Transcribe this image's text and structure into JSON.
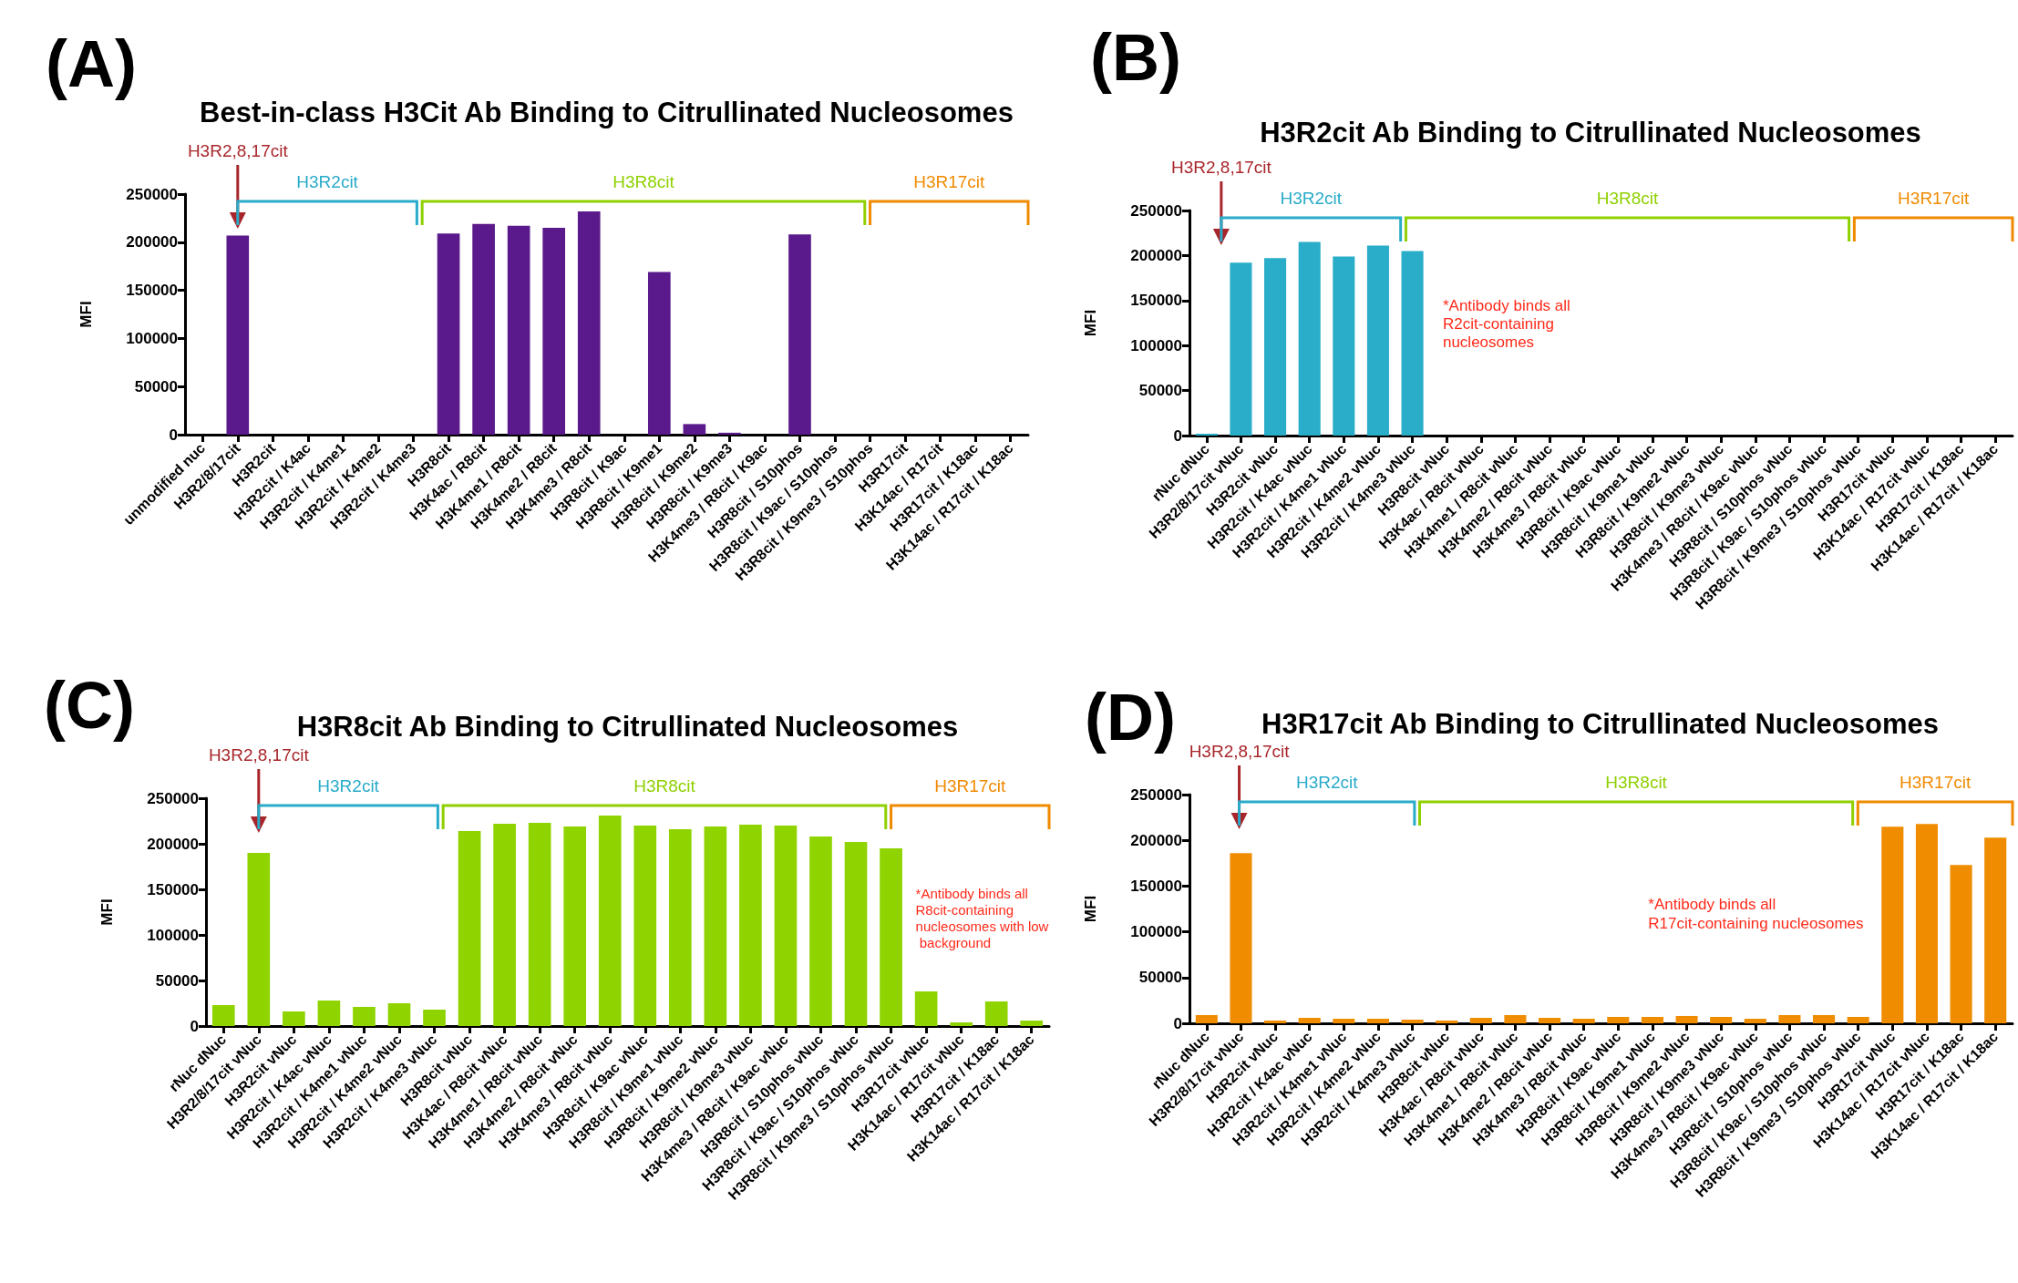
{
  "chart_data": [
    {
      "type": "bar",
      "title": "Best-in-class H3Cit Ab Binding to Citrullinated Nucleosomes",
      "ylabel": "MFI",
      "color": "#5b1a8b",
      "categories": [
        "unmodified nuc",
        "H3R2/8/17cit",
        "H3R2cit",
        "H3R2cit / K4ac",
        "H3R2cit / K4me1",
        "H3R2cit / K4me2",
        "H3R2cit / K4me3",
        "H3R8cit",
        "H3K4ac / R8cit",
        "H3K4me1 / R8cit",
        "H3K4me2 / R8cit",
        "H3K4me3 / R8cit",
        "H3R8cit / K9ac",
        "H3R8cit / K9me1",
        "H3R8cit / K9me2",
        "H3R8cit / K9me3",
        "H3K4me3 / R8cit / K9ac",
        "H3R8cit / S10phos",
        "H3R8cit / K9ac / S10phos",
        "H3R8cit / K9me3 / S10phos",
        "H3R17cit",
        "H3K14ac / R17cit",
        "H3R17cit / K18ac",
        "H3K14ac / R17cit / K18ac"
      ],
      "values": [
        0,
        207000,
        0,
        0,
        0,
        0,
        0,
        209000,
        219000,
        217000,
        215000,
        232000,
        0,
        169000,
        11000,
        2000,
        0,
        208000,
        0,
        0,
        0,
        0,
        0,
        0
      ],
      "ylim": [
        0,
        250000
      ],
      "yticks": [
        0,
        50000,
        100000,
        150000,
        200000,
        250000
      ],
      "annotations": [
        "(A)",
        "H3R2,8,17cit",
        "H3R2cit",
        "H3R8cit",
        "H3R17cit"
      ]
    },
    {
      "type": "bar",
      "title": "H3R2cit Ab Binding to Citrullinated Nucleosomes",
      "ylabel": "MFI",
      "color": "#29adc8",
      "categories": [
        "rNuc dNuc",
        "H3R2/8/17cit vNuc",
        "H3R2cit vNuc",
        "H3R2cit / K4ac vNuc",
        "H3R2cit / K4me1 vNuc",
        "H3R2cit / K4me2 vNuc",
        "H3R2cit / K4me3 vNuc",
        "H3R8cit vNuc",
        "H3K4ac / R8cit vNuc",
        "H3K4me1 / R8cit vNuc",
        "H3K4me2 / R8cit vNuc",
        "H3K4me3 / R8cit vNuc",
        "H3R8cit / K9ac vNuc",
        "H3R8cit / K9me1 vNuc",
        "H3R8cit / K9me2 vNuc",
        "H3R8cit / K9me3 vNuc",
        "H3K4me3 / R8cit / K9ac vNuc",
        "H3R8cit / S10phos vNuc",
        "H3R8cit / K9ac / S10phos vNuc",
        "H3R8cit / K9me3 / S10phos vNuc",
        "H3R17cit vNuc",
        "H3K14ac / R17cit vNuc",
        "H3R17cit / K18ac",
        "H3K14ac / R17cit / K18ac"
      ],
      "values": [
        2000,
        192000,
        197000,
        215000,
        199000,
        211000,
        205000,
        0,
        0,
        0,
        0,
        0,
        0,
        0,
        0,
        0,
        0,
        0,
        0,
        0,
        0,
        0,
        0,
        0
      ],
      "ylim": [
        0,
        250000
      ],
      "yticks": [
        0,
        50000,
        100000,
        150000,
        200000,
        250000
      ],
      "annotations": [
        "(B)",
        "H3R2,8,17cit",
        "H3R2cit",
        "H3R8cit",
        "H3R17cit",
        "*Antibody binds all R2cit-containing nucleosomes"
      ]
    },
    {
      "type": "bar",
      "title": "H3R8cit Ab Binding to Citrullinated Nucleosomes",
      "ylabel": "MFI",
      "color": "#8fd400",
      "categories": [
        "rNuc dNuc",
        "H3R2/8/17cit vNuc",
        "H3R2cit vNuc",
        "H3R2cit / K4ac vNuc",
        "H3R2cit / K4me1 vNuc",
        "H3R2cit / K4me2 vNuc",
        "H3R2cit / K4me3 vNuc",
        "H3R8cit vNuc",
        "H3K4ac / R8cit vNuc",
        "H3K4me1 / R8cit vNuc",
        "H3K4me2 / R8cit vNuc",
        "H3K4me3 / R8cit vNuc",
        "H3R8cit / K9ac vNuc",
        "H3R8cit / K9me1 vNuc",
        "H3R8cit / K9me2 vNuc",
        "H3R8cit / K9me3 vNuc",
        "H3K4me3 / R8cit / K9ac vNuc",
        "H3R8cit / S10phos vNuc",
        "H3R8cit / K9ac / S10phos vNuc",
        "H3R8cit / K9me3 / S10phos vNuc",
        "H3R17cit vNuc",
        "H3K14ac / R17cit vNuc",
        "H3R17cit / K18ac",
        "H3K14ac / R17cit / K18ac"
      ],
      "values": [
        23000,
        190000,
        16000,
        28000,
        21000,
        25000,
        18000,
        214000,
        222000,
        223000,
        219000,
        231000,
        220000,
        216000,
        219000,
        221000,
        220000,
        208000,
        202000,
        195000,
        38000,
        4000,
        27000,
        6000
      ],
      "ylim": [
        0,
        250000
      ],
      "yticks": [
        0,
        50000,
        100000,
        150000,
        200000,
        250000
      ],
      "annotations": [
        "(C)",
        "H3R2,8,17cit",
        "H3R2cit",
        "H3R8cit",
        "H3R17cit",
        "*Antibody binds all R8cit-containing nucleosomes with low background"
      ]
    },
    {
      "type": "bar",
      "title": "H3R17cit Ab Binding to Citrullinated Nucleosomes",
      "ylabel": "MFI",
      "color": "#f08c00",
      "categories": [
        "rNuc dNuc",
        "H3R2/8/17cit vNuc",
        "H3R2cit vNuc",
        "H3R2cit / K4ac vNuc",
        "H3R2cit / K4me1 vNuc",
        "H3R2cit / K4me2 vNuc",
        "H3R2cit / K4me3 vNuc",
        "H3R8cit vNuc",
        "H3K4ac / R8cit vNuc",
        "H3K4me1 / R8cit vNuc",
        "H3K4me2 / R8cit vNuc",
        "H3K4me3 / R8cit vNuc",
        "H3R8cit / K9ac vNuc",
        "H3R8cit / K9me1 vNuc",
        "H3R8cit / K9me2 vNuc",
        "H3R8cit / K9me3 vNuc",
        "H3K4me3 / R8cit / K9ac vNuc",
        "H3R8cit / S10phos vNuc",
        "H3R8cit / K9ac / S10phos vNuc",
        "H3R8cit / K9me3 / S10phos vNuc",
        "H3R17cit vNuc",
        "H3K14ac / R17cit vNuc",
        "H3R17cit / K18ac",
        "H3K14ac / R17cit / K18ac"
      ],
      "values": [
        9000,
        186000,
        3000,
        6000,
        5000,
        5000,
        4000,
        3000,
        6000,
        9000,
        6000,
        5000,
        7000,
        7000,
        8000,
        7000,
        5000,
        9000,
        9000,
        7000,
        215000,
        218000,
        173000,
        203000
      ],
      "ylim": [
        0,
        250000
      ],
      "yticks": [
        0,
        50000,
        100000,
        150000,
        200000,
        250000
      ],
      "annotations": [
        "(D)",
        "H3R2,8,17cit",
        "H3R2cit",
        "H3R8cit",
        "H3R17cit",
        "*Antibody binds all R17cit-containing nucleosomes"
      ]
    }
  ]
}
